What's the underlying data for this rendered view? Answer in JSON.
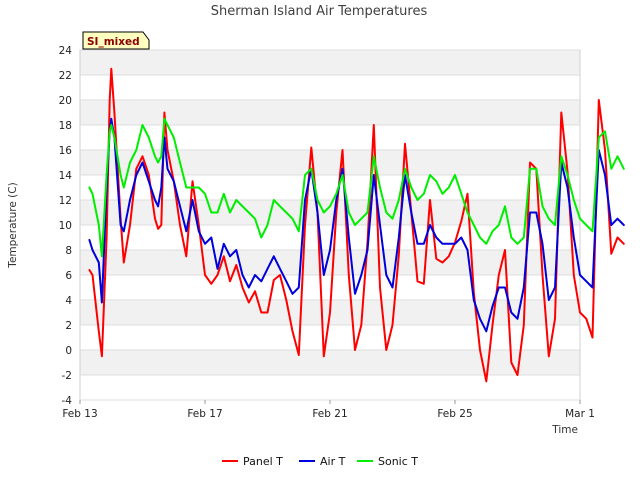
{
  "chart_data": {
    "type": "line",
    "title": "Sherman Island Air Temperatures",
    "xlabel": "Time",
    "ylabel": "Temperature (C)",
    "badge": "SI_mixed",
    "ylim": [
      -4,
      24
    ],
    "yticks": [
      -4,
      -2,
      0,
      2,
      4,
      6,
      8,
      10,
      12,
      14,
      16,
      18,
      20,
      22,
      24
    ],
    "xlim_days": [
      0,
      16
    ],
    "xticks": [
      {
        "label": "Feb 13",
        "day": 0
      },
      {
        "label": "Feb 17",
        "day": 4
      },
      {
        "label": "Feb 21",
        "day": 8
      },
      {
        "label": "Feb 25",
        "day": 12
      },
      {
        "label": "Mar 1",
        "day": 16
      }
    ],
    "x_unit": "days since Feb 13",
    "legend_position": "bottom",
    "grid": true,
    "series": [
      {
        "name": "Panel T",
        "color": "#ff0000",
        "x": [
          0.3,
          0.4,
          0.6,
          0.7,
          0.85,
          0.95,
          1.0,
          1.1,
          1.3,
          1.4,
          1.6,
          1.8,
          2.0,
          2.2,
          2.4,
          2.5,
          2.6,
          2.7,
          2.8,
          3.0,
          3.2,
          3.4,
          3.6,
          3.8,
          4.0,
          4.2,
          4.4,
          4.6,
          4.8,
          5.0,
          5.2,
          5.4,
          5.6,
          5.8,
          6.0,
          6.2,
          6.4,
          6.6,
          6.8,
          7.0,
          7.2,
          7.4,
          7.6,
          7.8,
          8.0,
          8.2,
          8.4,
          8.6,
          8.8,
          9.0,
          9.2,
          9.4,
          9.6,
          9.8,
          10.0,
          10.2,
          10.4,
          10.6,
          10.8,
          11.0,
          11.2,
          11.4,
          11.6,
          11.8,
          12.0,
          12.2,
          12.4,
          12.6,
          12.8,
          13.0,
          13.2,
          13.4,
          13.6,
          13.8,
          14.0,
          14.2,
          14.4,
          14.6,
          14.8,
          15.0,
          15.2,
          15.4,
          15.6,
          15.8,
          16.0,
          16.2,
          16.4,
          16.6,
          16.8,
          17.0,
          17.2,
          17.4
        ],
        "y": [
          6.4,
          6.0,
          1.5,
          -0.5,
          9.0,
          20.0,
          22.5,
          19.0,
          10.5,
          7.0,
          10.0,
          14.5,
          15.5,
          14.0,
          10.5,
          9.7,
          10.0,
          19.0,
          16.0,
          13.5,
          10.0,
          7.5,
          13.5,
          10.0,
          6.0,
          5.3,
          6.0,
          7.5,
          5.5,
          6.8,
          5.0,
          3.8,
          4.7,
          3.0,
          3.0,
          5.6,
          6.0,
          4.0,
          1.5,
          -0.4,
          10.0,
          16.2,
          11.0,
          -0.5,
          3.0,
          11.0,
          16.0,
          6.0,
          0.0,
          2.0,
          8.6,
          18.0,
          5.0,
          0.0,
          2.0,
          7.6,
          16.5,
          11.0,
          5.5,
          5.3,
          12.0,
          7.3,
          7.0,
          7.5,
          8.6,
          10.3,
          12.5,
          4.6,
          0.0,
          -2.5,
          2.0,
          6.0,
          8.0,
          -1.0,
          -2.0,
          2.0,
          15.0,
          14.5,
          6.0,
          -0.5,
          2.5,
          19.0,
          14.3,
          6.0,
          3.0,
          2.5,
          1.0,
          20.0,
          16.0,
          7.7,
          9.0,
          8.5
        ]
      },
      {
        "name": "Air T",
        "color": "#0000dd",
        "x": [
          0.3,
          0.4,
          0.6,
          0.7,
          0.85,
          0.95,
          1.0,
          1.1,
          1.3,
          1.4,
          1.6,
          1.8,
          2.0,
          2.2,
          2.4,
          2.5,
          2.6,
          2.7,
          2.8,
          3.0,
          3.2,
          3.4,
          3.6,
          3.8,
          4.0,
          4.2,
          4.4,
          4.6,
          4.8,
          5.0,
          5.2,
          5.4,
          5.6,
          5.8,
          6.0,
          6.2,
          6.4,
          6.6,
          6.8,
          7.0,
          7.2,
          7.4,
          7.6,
          7.8,
          8.0,
          8.2,
          8.4,
          8.6,
          8.8,
          9.0,
          9.2,
          9.4,
          9.6,
          9.8,
          10.0,
          10.2,
          10.4,
          10.6,
          10.8,
          11.0,
          11.2,
          11.4,
          11.6,
          11.8,
          12.0,
          12.2,
          12.4,
          12.6,
          12.8,
          13.0,
          13.2,
          13.4,
          13.6,
          13.8,
          14.0,
          14.2,
          14.4,
          14.6,
          14.8,
          15.0,
          15.2,
          15.4,
          15.6,
          15.8,
          16.0,
          16.2,
          16.4,
          16.6,
          16.8,
          17.0,
          17.2,
          17.4
        ],
        "y": [
          8.8,
          8.0,
          7.0,
          3.8,
          13.0,
          17.5,
          18.5,
          17.0,
          10.0,
          9.5,
          12.0,
          14.0,
          15.0,
          13.5,
          12.0,
          11.5,
          13.0,
          17.0,
          14.5,
          13.5,
          11.5,
          9.5,
          12.0,
          9.5,
          8.5,
          9.0,
          6.5,
          8.5,
          7.5,
          8.0,
          6.0,
          5.0,
          6.0,
          5.5,
          6.5,
          7.5,
          6.5,
          5.5,
          4.5,
          5.0,
          12.0,
          14.5,
          11.0,
          6.0,
          8.0,
          12.0,
          14.5,
          9.0,
          4.5,
          6.0,
          8.0,
          14.0,
          10.0,
          6.0,
          5.0,
          9.0,
          14.0,
          11.0,
          8.5,
          8.5,
          10.0,
          9.0,
          8.5,
          8.5,
          8.5,
          9.0,
          8.0,
          4.0,
          2.5,
          1.5,
          3.5,
          5.0,
          5.0,
          3.0,
          2.5,
          5.0,
          11.0,
          11.0,
          8.5,
          4.0,
          5.0,
          15.0,
          13.0,
          9.0,
          6.0,
          5.5,
          5.0,
          16.0,
          14.0,
          10.0,
          10.5,
          10.0
        ]
      },
      {
        "name": "Sonic T",
        "color": "#00ee00",
        "x": [
          0.3,
          0.4,
          0.6,
          0.7,
          0.85,
          0.95,
          1.0,
          1.1,
          1.3,
          1.4,
          1.6,
          1.8,
          2.0,
          2.2,
          2.4,
          2.5,
          2.6,
          2.7,
          2.8,
          3.0,
          3.2,
          3.4,
          3.6,
          3.8,
          4.0,
          4.2,
          4.4,
          4.6,
          4.8,
          5.0,
          5.2,
          5.4,
          5.6,
          5.8,
          6.0,
          6.2,
          6.4,
          6.6,
          6.8,
          7.0,
          7.2,
          7.4,
          7.6,
          7.8,
          8.0,
          8.2,
          8.4,
          8.6,
          8.8,
          9.0,
          9.2,
          9.4,
          9.6,
          9.8,
          10.0,
          10.2,
          10.4,
          10.6,
          10.8,
          11.0,
          11.2,
          11.4,
          11.6,
          11.8,
          12.0,
          12.2,
          12.4,
          12.6,
          12.8,
          13.0,
          13.2,
          13.4,
          13.6,
          13.8,
          14.0,
          14.2,
          14.4,
          14.6,
          14.8,
          15.0,
          15.2,
          15.4,
          15.6,
          15.8,
          16.0,
          16.2,
          16.4,
          16.6,
          16.8,
          17.0,
          17.2,
          17.4
        ],
        "y": [
          13.0,
          12.5,
          10.0,
          7.5,
          14.0,
          17.5,
          18.0,
          17.0,
          14.0,
          13.0,
          15.0,
          16.0,
          18.0,
          17.0,
          15.5,
          15.0,
          15.5,
          18.5,
          18.0,
          17.0,
          15.0,
          13.0,
          13.0,
          13.0,
          12.5,
          11.0,
          11.0,
          12.5,
          11.0,
          12.0,
          11.5,
          11.0,
          10.5,
          9.0,
          10.0,
          12.0,
          11.5,
          11.0,
          10.5,
          9.5,
          14.0,
          14.5,
          12.0,
          11.0,
          11.5,
          12.5,
          14.0,
          11.0,
          10.0,
          10.5,
          11.0,
          15.5,
          13.0,
          11.0,
          10.5,
          12.0,
          14.5,
          13.0,
          12.0,
          12.5,
          14.0,
          13.5,
          12.5,
          13.0,
          14.0,
          12.5,
          11.0,
          10.0,
          9.0,
          8.5,
          9.5,
          10.0,
          11.5,
          9.0,
          8.5,
          9.0,
          14.5,
          14.5,
          11.5,
          10.5,
          10.0,
          15.5,
          14.0,
          12.0,
          10.5,
          10.0,
          9.5,
          17.0,
          17.5,
          14.5,
          15.5,
          14.5
        ]
      }
    ]
  }
}
